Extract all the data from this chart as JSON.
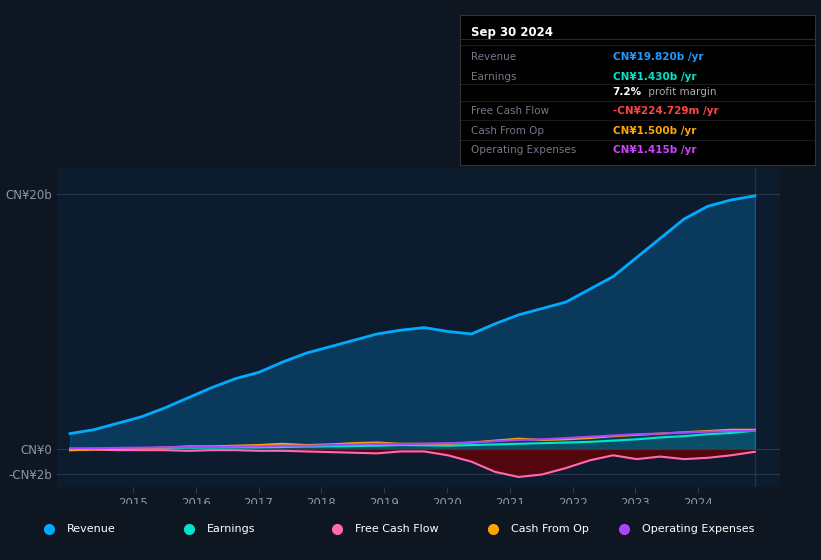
{
  "bg_color": "#0e1621",
  "chart_bg": "#0d1b2e",
  "text_color": "#8899aa",
  "ylim": [
    -3000000000.0,
    22000000000.0
  ],
  "ytick_vals": [
    -2000000000.0,
    0,
    20000000000.0
  ],
  "ytick_labels": [
    "-CN¥2b",
    "CN¥0",
    "CN¥20b"
  ],
  "xtick_positions": [
    2015,
    2016,
    2017,
    2018,
    2019,
    2020,
    2021,
    2022,
    2023,
    2024
  ],
  "xtick_labels": [
    "2015",
    "2016",
    "2017",
    "2018",
    "2019",
    "2020",
    "2021",
    "2022",
    "2023",
    "2024"
  ],
  "xlim_start": 2013.8,
  "xlim_end": 2025.3,
  "legend": [
    {
      "label": "Revenue",
      "color": "#00aaff"
    },
    {
      "label": "Earnings",
      "color": "#00e5cc"
    },
    {
      "label": "Free Cash Flow",
      "color": "#ff69b4"
    },
    {
      "label": "Cash From Op",
      "color": "#ffa500"
    },
    {
      "label": "Operating Expenses",
      "color": "#aa44ff"
    }
  ],
  "tooltip": {
    "date": "Sep 30 2024",
    "rows": [
      {
        "label": "Revenue",
        "value": "CN¥19.820b /yr",
        "value_color": "#2299ff"
      },
      {
        "label": "Earnings",
        "value": "CN¥1.430b /yr",
        "value_color": "#00e5cc"
      },
      {
        "label": "",
        "pct": "7.2%",
        "rest": " profit margin"
      },
      {
        "label": "Free Cash Flow",
        "value": "-CN¥224.729m /yr",
        "value_color": "#ff4444"
      },
      {
        "label": "Cash From Op",
        "value": "CN¥1.500b /yr",
        "value_color": "#ffa500"
      },
      {
        "label": "Operating Expenses",
        "value": "CN¥1.415b /yr",
        "value_color": "#cc44ff"
      }
    ]
  },
  "revenue": [
    1.2,
    1.5,
    2.0,
    2.5,
    3.2,
    4.0,
    4.8,
    5.5,
    6.0,
    6.8,
    7.5,
    8.0,
    8.5,
    9.0,
    9.3,
    9.5,
    9.2,
    9.0,
    9.8,
    10.5,
    11.0,
    11.5,
    12.5,
    13.5,
    15.0,
    16.5,
    18.0,
    19.0,
    19.5,
    19.82
  ],
  "earnings": [
    -0.05,
    0.0,
    0.02,
    0.05,
    0.08,
    0.1,
    0.1,
    0.12,
    0.12,
    0.15,
    0.18,
    0.2,
    0.22,
    0.25,
    0.3,
    0.28,
    0.25,
    0.3,
    0.35,
    0.4,
    0.45,
    0.5,
    0.55,
    0.65,
    0.75,
    0.9,
    1.0,
    1.15,
    1.25,
    1.43
  ],
  "free_cash_flow": [
    -0.1,
    -0.05,
    -0.1,
    -0.1,
    -0.1,
    -0.15,
    -0.1,
    -0.1,
    -0.15,
    -0.15,
    -0.2,
    -0.25,
    -0.3,
    -0.35,
    -0.2,
    -0.2,
    -0.5,
    -1.0,
    -1.8,
    -2.2,
    -2.0,
    -1.5,
    -0.9,
    -0.5,
    -0.8,
    -0.6,
    -0.8,
    -0.7,
    -0.5,
    -0.2248
  ],
  "cash_from_op": [
    -0.1,
    -0.05,
    0.0,
    0.05,
    0.1,
    0.2,
    0.2,
    0.25,
    0.3,
    0.4,
    0.3,
    0.35,
    0.45,
    0.5,
    0.4,
    0.4,
    0.4,
    0.5,
    0.65,
    0.8,
    0.7,
    0.75,
    0.85,
    1.0,
    1.1,
    1.2,
    1.3,
    1.4,
    1.5,
    1.5
  ],
  "operating_expenses": [
    0.05,
    0.05,
    0.08,
    0.1,
    0.12,
    0.15,
    0.15,
    0.18,
    0.2,
    0.25,
    0.25,
    0.3,
    0.35,
    0.4,
    0.38,
    0.4,
    0.45,
    0.5,
    0.6,
    0.7,
    0.75,
    0.85,
    0.95,
    1.05,
    1.15,
    1.2,
    1.28,
    1.35,
    1.4,
    1.415
  ]
}
